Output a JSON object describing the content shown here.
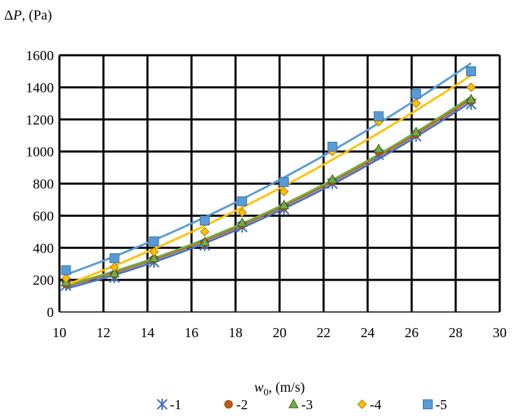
{
  "chart_data": {
    "type": "line",
    "ylabel_parts": {
      "delta": "Δ",
      "var": "P",
      "unit": ", (Pa)"
    },
    "xlabel_parts": {
      "var": "w",
      "sub": "0",
      "unit": ", (m/s)"
    },
    "xlim": [
      10,
      30
    ],
    "ylim": [
      0,
      1600
    ],
    "xticks": [
      10,
      12,
      14,
      16,
      18,
      20,
      22,
      24,
      26,
      28,
      30
    ],
    "yticks": [
      0,
      200,
      400,
      600,
      800,
      1000,
      1200,
      1400,
      1600
    ],
    "grid": true,
    "legend_position": "bottom",
    "series": [
      {
        "name": "-1",
        "color": "#4472C4",
        "marker": "asterisk",
        "x": [
          10.3,
          12.5,
          14.3,
          16.6,
          18.3,
          20.2,
          22.4,
          24.5,
          26.2,
          28.7
        ],
        "y": [
          165,
          215,
          310,
          415,
          530,
          640,
          800,
          980,
          1095,
          1295
        ]
      },
      {
        "name": "-2",
        "color": "#C55A11",
        "marker": "circle",
        "x": [
          10.3,
          12.5,
          14.3,
          16.6,
          18.3,
          20.2,
          22.4,
          24.5,
          26.2,
          28.7
        ],
        "y": [
          175,
          235,
          330,
          430,
          545,
          655,
          815,
          1000,
          1110,
          1315
        ]
      },
      {
        "name": "-3",
        "color": "#70AD47",
        "marker": "triangle",
        "x": [
          10.3,
          12.5,
          14.3,
          16.6,
          18.3,
          20.2,
          22.4,
          24.5,
          26.2,
          28.7
        ],
        "y": [
          185,
          240,
          335,
          435,
          555,
          665,
          825,
          1015,
          1120,
          1325
        ]
      },
      {
        "name": "-4",
        "color": "#FFC000",
        "marker": "diamond",
        "x": [
          10.3,
          12.5,
          14.3,
          16.6,
          18.3,
          20.2,
          22.4,
          24.5,
          26.2,
          28.7
        ],
        "y": [
          210,
          280,
          375,
          500,
          620,
          750,
          1000,
          1185,
          1300,
          1400
        ]
      },
      {
        "name": "-5",
        "color": "#5B9BD5",
        "marker": "square",
        "x": [
          10.3,
          12.5,
          14.3,
          16.6,
          18.3,
          20.2,
          22.4,
          24.5,
          26.2,
          28.7
        ],
        "y": [
          260,
          335,
          440,
          570,
          690,
          810,
          1030,
          1220,
          1360,
          1500
        ]
      }
    ]
  }
}
